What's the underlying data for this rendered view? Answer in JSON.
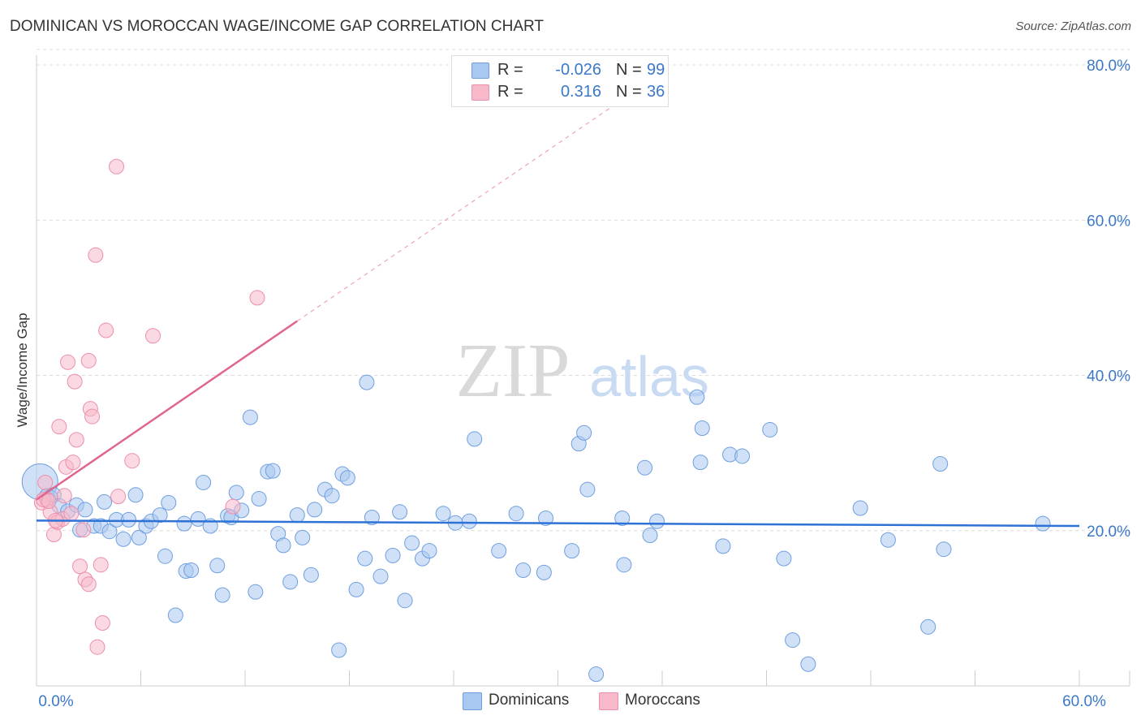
{
  "title": "DOMINICAN VS MOROCCAN WAGE/INCOME GAP CORRELATION CHART",
  "source": "Source: ZipAtlas.com",
  "watermark": {
    "zip": "ZIP",
    "atlas": "atlas"
  },
  "legend": {
    "rows": [
      {
        "r_label": "R =",
        "r_value": "-0.026",
        "n_label": "N =",
        "n_value": "99",
        "color": "#a9c8f1"
      },
      {
        "r_label": "R =",
        "r_value": "0.316",
        "n_label": "N =",
        "n_value": "36",
        "color": "#f7b9ca"
      }
    ]
  },
  "bottom_legend": [
    {
      "label": "Dominicans",
      "color": "#a9c8f1"
    },
    {
      "label": "Moroccans",
      "color": "#f7b9ca"
    }
  ],
  "chart_data": {
    "type": "scatter",
    "title": "DOMINICAN VS MOROCCAN WAGE/INCOME GAP CORRELATION CHART",
    "xlabel": "",
    "ylabel": "Wage/Income Gap",
    "xlim": [
      0,
      60
    ],
    "ylim": [
      0,
      80
    ],
    "x_tick_labels": [
      {
        "value": 0,
        "label": "0.0%"
      },
      {
        "value": 60,
        "label": "60.0%"
      }
    ],
    "y_tick_labels": [
      {
        "value": 20,
        "label": "20.0%"
      },
      {
        "value": 40,
        "label": "40.0%"
      },
      {
        "value": 60,
        "label": "60.0%"
      },
      {
        "value": 80,
        "label": "80.0%"
      }
    ],
    "gridlines": "horizontal-dashed",
    "series": [
      {
        "name": "Dominicans",
        "color": "#a9c8f1",
        "stroke": "#6f9fe0",
        "trend": {
          "x": [
            0,
            60
          ],
          "y": [
            21.3,
            20.6
          ],
          "color": "#2f72d6"
        },
        "points": [
          [
            0.2,
            26.3
          ],
          [
            0.6,
            24.5
          ],
          [
            0.8,
            24.3
          ],
          [
            1.0,
            24.6
          ],
          [
            1.3,
            23.2
          ],
          [
            1.8,
            22.5
          ],
          [
            2.3,
            23.3
          ],
          [
            2.5,
            20.1
          ],
          [
            2.8,
            22.7
          ],
          [
            3.3,
            20.6
          ],
          [
            3.7,
            20.6
          ],
          [
            3.9,
            23.7
          ],
          [
            4.2,
            19.9
          ],
          [
            4.6,
            21.4
          ],
          [
            5.0,
            18.9
          ],
          [
            5.3,
            21.4
          ],
          [
            5.7,
            24.6
          ],
          [
            5.9,
            19.1
          ],
          [
            6.3,
            20.6
          ],
          [
            6.6,
            21.2
          ],
          [
            7.1,
            22.0
          ],
          [
            7.4,
            16.7
          ],
          [
            7.6,
            23.6
          ],
          [
            8.0,
            9.1
          ],
          [
            8.5,
            20.9
          ],
          [
            8.6,
            14.8
          ],
          [
            8.9,
            14.9
          ],
          [
            9.3,
            21.5
          ],
          [
            9.6,
            26.2
          ],
          [
            10.0,
            20.6
          ],
          [
            10.4,
            15.5
          ],
          [
            10.7,
            11.7
          ],
          [
            11.0,
            21.9
          ],
          [
            11.2,
            21.7
          ],
          [
            11.5,
            24.9
          ],
          [
            11.8,
            22.6
          ],
          [
            12.3,
            34.6
          ],
          [
            12.6,
            12.1
          ],
          [
            12.8,
            24.1
          ],
          [
            13.3,
            27.6
          ],
          [
            13.6,
            27.7
          ],
          [
            13.9,
            19.6
          ],
          [
            14.2,
            18.1
          ],
          [
            14.6,
            13.4
          ],
          [
            15.0,
            22.0
          ],
          [
            15.3,
            19.1
          ],
          [
            15.8,
            14.3
          ],
          [
            16.0,
            22.7
          ],
          [
            16.6,
            25.3
          ],
          [
            17.0,
            24.5
          ],
          [
            17.4,
            4.6
          ],
          [
            17.6,
            27.3
          ],
          [
            17.9,
            26.8
          ],
          [
            18.4,
            12.4
          ],
          [
            18.9,
            16.4
          ],
          [
            19.0,
            39.1
          ],
          [
            19.3,
            21.7
          ],
          [
            19.8,
            14.1
          ],
          [
            20.5,
            16.8
          ],
          [
            20.9,
            22.4
          ],
          [
            21.2,
            11.0
          ],
          [
            21.6,
            18.4
          ],
          [
            22.2,
            16.4
          ],
          [
            22.6,
            17.4
          ],
          [
            23.4,
            22.2
          ],
          [
            24.1,
            21.0
          ],
          [
            24.9,
            21.2
          ],
          [
            25.2,
            31.8
          ],
          [
            26.6,
            17.4
          ],
          [
            27.6,
            22.2
          ],
          [
            28.0,
            14.9
          ],
          [
            29.2,
            14.6
          ],
          [
            29.3,
            21.6
          ],
          [
            30.8,
            17.4
          ],
          [
            31.2,
            31.2
          ],
          [
            31.5,
            32.6
          ],
          [
            31.7,
            25.3
          ],
          [
            32.2,
            1.5
          ],
          [
            33.7,
            21.6
          ],
          [
            33.8,
            15.6
          ],
          [
            35.0,
            28.1
          ],
          [
            35.3,
            19.4
          ],
          [
            35.7,
            21.2
          ],
          [
            38.0,
            37.2
          ],
          [
            38.2,
            28.8
          ],
          [
            38.3,
            33.2
          ],
          [
            39.5,
            18.0
          ],
          [
            39.9,
            29.8
          ],
          [
            40.6,
            29.6
          ],
          [
            42.2,
            33.0
          ],
          [
            43.0,
            16.4
          ],
          [
            43.5,
            5.9
          ],
          [
            44.4,
            2.8
          ],
          [
            47.4,
            22.9
          ],
          [
            49.0,
            18.8
          ],
          [
            51.3,
            7.6
          ],
          [
            52.0,
            28.6
          ],
          [
            52.2,
            17.6
          ],
          [
            57.9,
            20.9
          ]
        ]
      },
      {
        "name": "Moroccans",
        "color": "#f7b9ca",
        "stroke": "#eb8fab",
        "trend": {
          "x": [
            0,
            15
          ],
          "y": [
            24.0,
            47.0
          ],
          "color": "#e0668f",
          "dashed_extension": {
            "x": [
              15,
              35
            ],
            "y": [
              47.0,
              77.5
            ]
          }
        },
        "points": [
          [
            0.3,
            23.6
          ],
          [
            0.5,
            26.2
          ],
          [
            0.6,
            24.0
          ],
          [
            0.8,
            22.4
          ],
          [
            1.0,
            19.5
          ],
          [
            1.2,
            21.1
          ],
          [
            1.3,
            33.4
          ],
          [
            1.5,
            21.5
          ],
          [
            1.6,
            24.5
          ],
          [
            1.7,
            28.2
          ],
          [
            1.8,
            41.7
          ],
          [
            2.0,
            22.2
          ],
          [
            2.1,
            28.8
          ],
          [
            2.2,
            39.2
          ],
          [
            2.3,
            31.7
          ],
          [
            2.5,
            15.4
          ],
          [
            2.7,
            20.1
          ],
          [
            2.8,
            13.7
          ],
          [
            3.0,
            13.1
          ],
          [
            3.0,
            41.9
          ],
          [
            3.1,
            35.7
          ],
          [
            3.2,
            34.7
          ],
          [
            3.4,
            55.5
          ],
          [
            3.5,
            5.0
          ],
          [
            3.7,
            15.6
          ],
          [
            3.8,
            8.1
          ],
          [
            4.0,
            45.8
          ],
          [
            4.6,
            66.9
          ],
          [
            4.7,
            24.4
          ],
          [
            5.5,
            29.0
          ],
          [
            6.7,
            45.1
          ],
          [
            11.3,
            23.1
          ],
          [
            12.7,
            50.0
          ],
          [
            0.4,
            24.0
          ],
          [
            0.7,
            23.8
          ],
          [
            1.1,
            21.3
          ]
        ]
      }
    ]
  }
}
